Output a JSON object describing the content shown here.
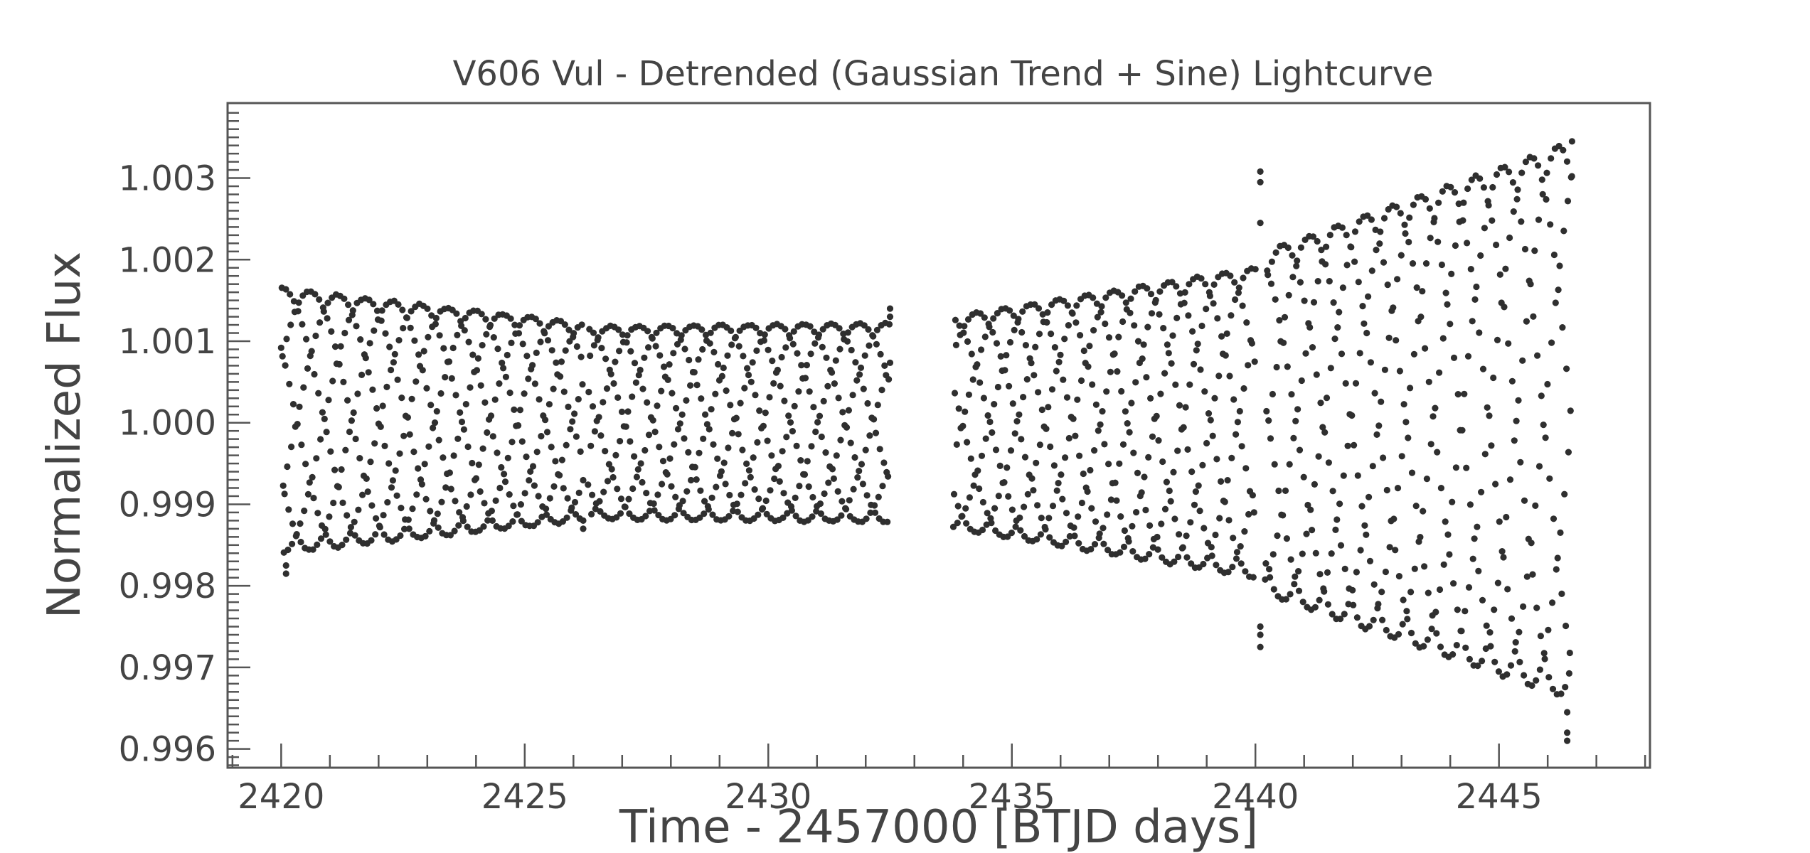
{
  "chart_data": {
    "type": "scatter",
    "title": "V606 Vul - Detrended (Gaussian Trend + Sine) Lightcurve",
    "xlabel": "Time - 2457000 [BTJD days]",
    "ylabel": "Normalized Flux",
    "xlim": [
      2418.9,
      2448.1
    ],
    "ylim": [
      0.99577,
      1.00392
    ],
    "x_ticks": [
      2420,
      2425,
      2430,
      2435,
      2440,
      2445
    ],
    "x_tick_labels": [
      "2420",
      "2425",
      "2430",
      "2435",
      "2440",
      "2445"
    ],
    "y_ticks": [
      0.996,
      0.997,
      0.998,
      0.999,
      1.0,
      1.001,
      1.002,
      1.003
    ],
    "y_tick_labels": [
      "0.996",
      "0.997",
      "0.998",
      "0.999",
      "1.000",
      "1.001",
      "1.002",
      "1.003"
    ],
    "grid": false,
    "marker_color": "#2f2f2f",
    "segments": [
      {
        "x_start": 2420.0,
        "x_end": 2426.2,
        "upper_start": 1.00165,
        "upper_end": 1.00122,
        "lower_start": 0.9984,
        "lower_end": 0.9988
      },
      {
        "x_start": 2426.3,
        "x_end": 2432.5,
        "upper_start": 1.00118,
        "upper_end": 1.00122,
        "lower_start": 0.99882,
        "lower_end": 0.99878
      },
      {
        "x_start": 2433.8,
        "x_end": 2440.0,
        "upper_start": 1.0013,
        "upper_end": 1.0019,
        "lower_start": 0.9987,
        "lower_end": 0.9981
      },
      {
        "x_start": 2440.2,
        "x_end": 2446.5,
        "upper_start": 1.0021,
        "upper_end": 1.00345,
        "lower_start": 0.9979,
        "lower_end": 0.9966
      }
    ],
    "outliers": [
      {
        "x": 2420.1,
        "y": 0.99815
      },
      {
        "x": 2420.1,
        "y": 0.99825
      },
      {
        "x": 2426.2,
        "y": 0.9987
      },
      {
        "x": 2426.2,
        "y": 0.9988
      },
      {
        "x": 2432.5,
        "y": 1.0014
      },
      {
        "x": 2432.5,
        "y": 1.0013
      },
      {
        "x": 2440.1,
        "y": 1.00308
      },
      {
        "x": 2440.1,
        "y": 1.00295
      },
      {
        "x": 2440.1,
        "y": 1.00245
      },
      {
        "x": 2440.1,
        "y": 0.9975
      },
      {
        "x": 2440.1,
        "y": 0.9974
      },
      {
        "x": 2440.1,
        "y": 0.99725
      },
      {
        "x": 2446.4,
        "y": 0.9962
      },
      {
        "x": 2446.4,
        "y": 0.9961
      },
      {
        "x": 2446.5,
        "y": 1.00345
      },
      {
        "x": 2446.4,
        "y": 0.99645
      }
    ]
  }
}
